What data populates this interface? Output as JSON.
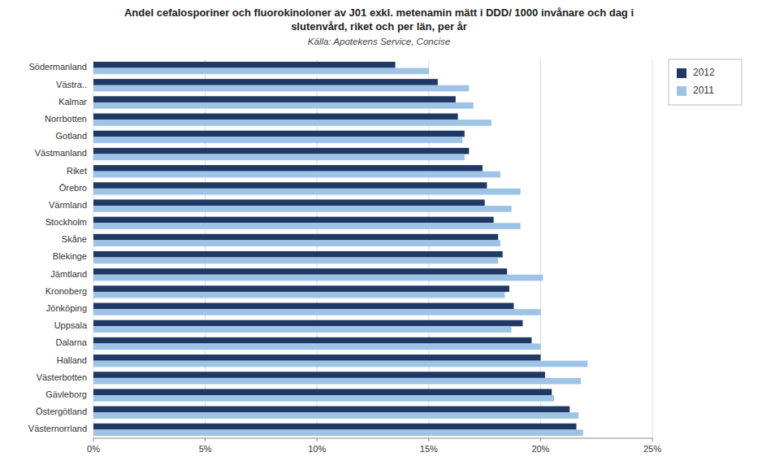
{
  "chart_data": {
    "type": "bar",
    "orientation": "horizontal",
    "title": "Andel cefalosporiner och fluorokinoloner av J01 exkl. metenamin mätt i DDD/ 1000 invånare och dag i\nslutenvård, riket och per län, per år",
    "subtitle": "Källa: Apotekens Service, Concise",
    "categories": [
      "Södermanland",
      "Västra..",
      "Kalmar",
      "Norrbotten",
      "Gotland",
      "Västmanland",
      "Riket",
      "Örebro",
      "Värmland",
      "Stockholm",
      "Skåne",
      "Blekinge",
      "Jämtland",
      "Kronoberg",
      "Jönköping",
      "Uppsala",
      "Dalarna",
      "Halland",
      "Västerbotten",
      "Gävleborg",
      "Östergötland",
      "Västernorrland"
    ],
    "series": [
      {
        "name": "2012",
        "color": "#1f3864",
        "values": [
          0.135,
          0.154,
          0.162,
          0.163,
          0.166,
          0.168,
          0.174,
          0.176,
          0.175,
          0.179,
          0.181,
          0.183,
          0.185,
          0.186,
          0.188,
          0.192,
          0.196,
          0.2,
          0.202,
          0.205,
          0.213,
          0.216
        ]
      },
      {
        "name": "2011",
        "color": "#9dc3e6",
        "values": [
          0.15,
          0.168,
          0.17,
          0.178,
          0.165,
          0.166,
          0.182,
          0.191,
          0.187,
          0.191,
          0.182,
          0.181,
          0.201,
          0.184,
          0.2,
          0.187,
          0.2,
          0.221,
          0.218,
          0.206,
          0.217,
          0.219
        ]
      }
    ],
    "xlim": [
      0,
      0.25
    ],
    "xticks": [
      {
        "value": 0,
        "label": "0%"
      },
      {
        "value": 0.05,
        "label": "5%"
      },
      {
        "value": 0.1,
        "label": "10%"
      },
      {
        "value": 0.15,
        "label": "15%"
      },
      {
        "value": 0.2,
        "label": "20%"
      },
      {
        "value": 0.25,
        "label": "25%"
      }
    ],
    "grid": true,
    "legend": "upper right"
  }
}
